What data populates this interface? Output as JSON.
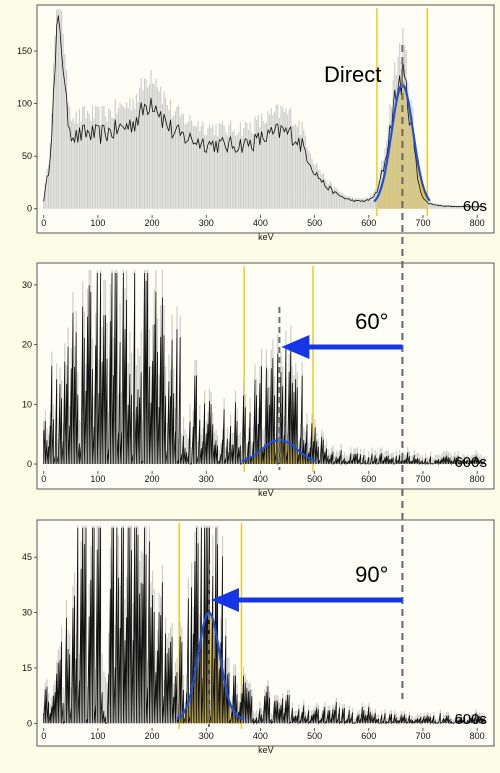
{
  "chart_data": [
    {
      "type": "line",
      "xlabel": "keV",
      "xlim": [
        -5,
        820
      ],
      "ylim": [
        -5,
        190
      ],
      "x_ticks": [
        0,
        100,
        200,
        300,
        400,
        500,
        600,
        700,
        800
      ],
      "y_ticks": [
        0,
        50,
        100,
        150
      ],
      "window_lines_kev": [
        615,
        708
      ],
      "centroid_kev": 662,
      "fit_gaussian": {
        "center": 662,
        "sigma": 20,
        "amplitude": 115,
        "baseline": 3
      },
      "spectrum_envelope": {
        "x": [
          0,
          10,
          20,
          25,
          30,
          35,
          40,
          50,
          60,
          70,
          80,
          100,
          130,
          160,
          180,
          190,
          200,
          210,
          220,
          240,
          260,
          300,
          340,
          380,
          400,
          420,
          440,
          460,
          480,
          500,
          520,
          540,
          560,
          580,
          600,
          615,
          630,
          645,
          655,
          662,
          670,
          680,
          690,
          700,
          710,
          730,
          760,
          800,
          815
        ],
        "y": [
          8,
          40,
          120,
          165,
          178,
          150,
          100,
          75,
          68,
          70,
          72,
          70,
          74,
          80,
          90,
          100,
          105,
          98,
          86,
          72,
          68,
          62,
          60,
          62,
          66,
          70,
          74,
          70,
          58,
          35,
          22,
          14,
          9,
          7,
          8,
          15,
          45,
          95,
          118,
          126,
          110,
          75,
          30,
          10,
          5,
          3,
          2,
          2,
          2
        ]
      },
      "label": "Direct",
      "duration": "60s"
    },
    {
      "type": "line",
      "xlabel": "keV",
      "xlim": [
        -5,
        820
      ],
      "ylim": [
        -1,
        33
      ],
      "x_ticks": [
        0,
        100,
        200,
        300,
        400,
        500,
        600,
        700,
        800
      ],
      "y_ticks": [
        0,
        10,
        20,
        30
      ],
      "window_lines_kev": [
        370,
        497
      ],
      "centroid_kev": 435,
      "fit_gaussian": {
        "center": 435,
        "sigma": 33,
        "amplitude": 4,
        "baseline": 0
      },
      "spectrum_envelope": {
        "x": [
          0,
          20,
          40,
          60,
          80,
          100,
          120,
          140,
          160,
          180,
          200,
          220,
          240,
          260,
          280,
          300,
          320,
          340,
          360,
          380,
          400,
          420,
          440,
          460,
          480,
          500,
          520,
          560,
          600,
          660,
          700,
          760,
          815
        ],
        "y": [
          4,
          8,
          10,
          12,
          16,
          20,
          22,
          24,
          26,
          25,
          22,
          18,
          14,
          10,
          8,
          6,
          5,
          5,
          6,
          7,
          9,
          10,
          11,
          9,
          6,
          3,
          2,
          1.5,
          1.5,
          1,
          1,
          1,
          1
        ]
      },
      "angle_label": "60°",
      "duration": "600s"
    },
    {
      "type": "line",
      "xlabel": "keV",
      "xlim": [
        -5,
        820
      ],
      "ylim": [
        -1,
        54
      ],
      "x_ticks": [
        0,
        100,
        200,
        300,
        400,
        500,
        600,
        700,
        800
      ],
      "y_ticks": [
        0,
        15,
        30,
        45
      ],
      "window_lines_kev": [
        250,
        365
      ],
      "centroid_kev": 305,
      "fit_gaussian": {
        "center": 305,
        "sigma": 20,
        "amplitude": 29,
        "baseline": 1
      },
      "spectrum_envelope": {
        "x": [
          0,
          20,
          40,
          60,
          80,
          100,
          120,
          140,
          160,
          180,
          200,
          220,
          240,
          260,
          280,
          295,
          305,
          315,
          330,
          350,
          380,
          420,
          460,
          520,
          600,
          700,
          815
        ],
        "y": [
          4,
          10,
          16,
          24,
          32,
          38,
          42,
          44,
          40,
          32,
          24,
          16,
          12,
          14,
          30,
          46,
          50,
          38,
          20,
          10,
          6,
          4,
          3,
          2.5,
          2,
          1.5,
          1.5
        ]
      },
      "angle_label": "90°",
      "duration": "600s"
    }
  ],
  "colors": {
    "background": "#fdfce6",
    "plot_bg": "#fefef6",
    "spectrum": "#111111",
    "spectrum_shadow": "#c8c8c8",
    "fit_line": "#1f4fd8",
    "fill": "#f5c400",
    "window_line": "#f2c200",
    "dashed": "#707070",
    "arrow": "#1535e6"
  }
}
